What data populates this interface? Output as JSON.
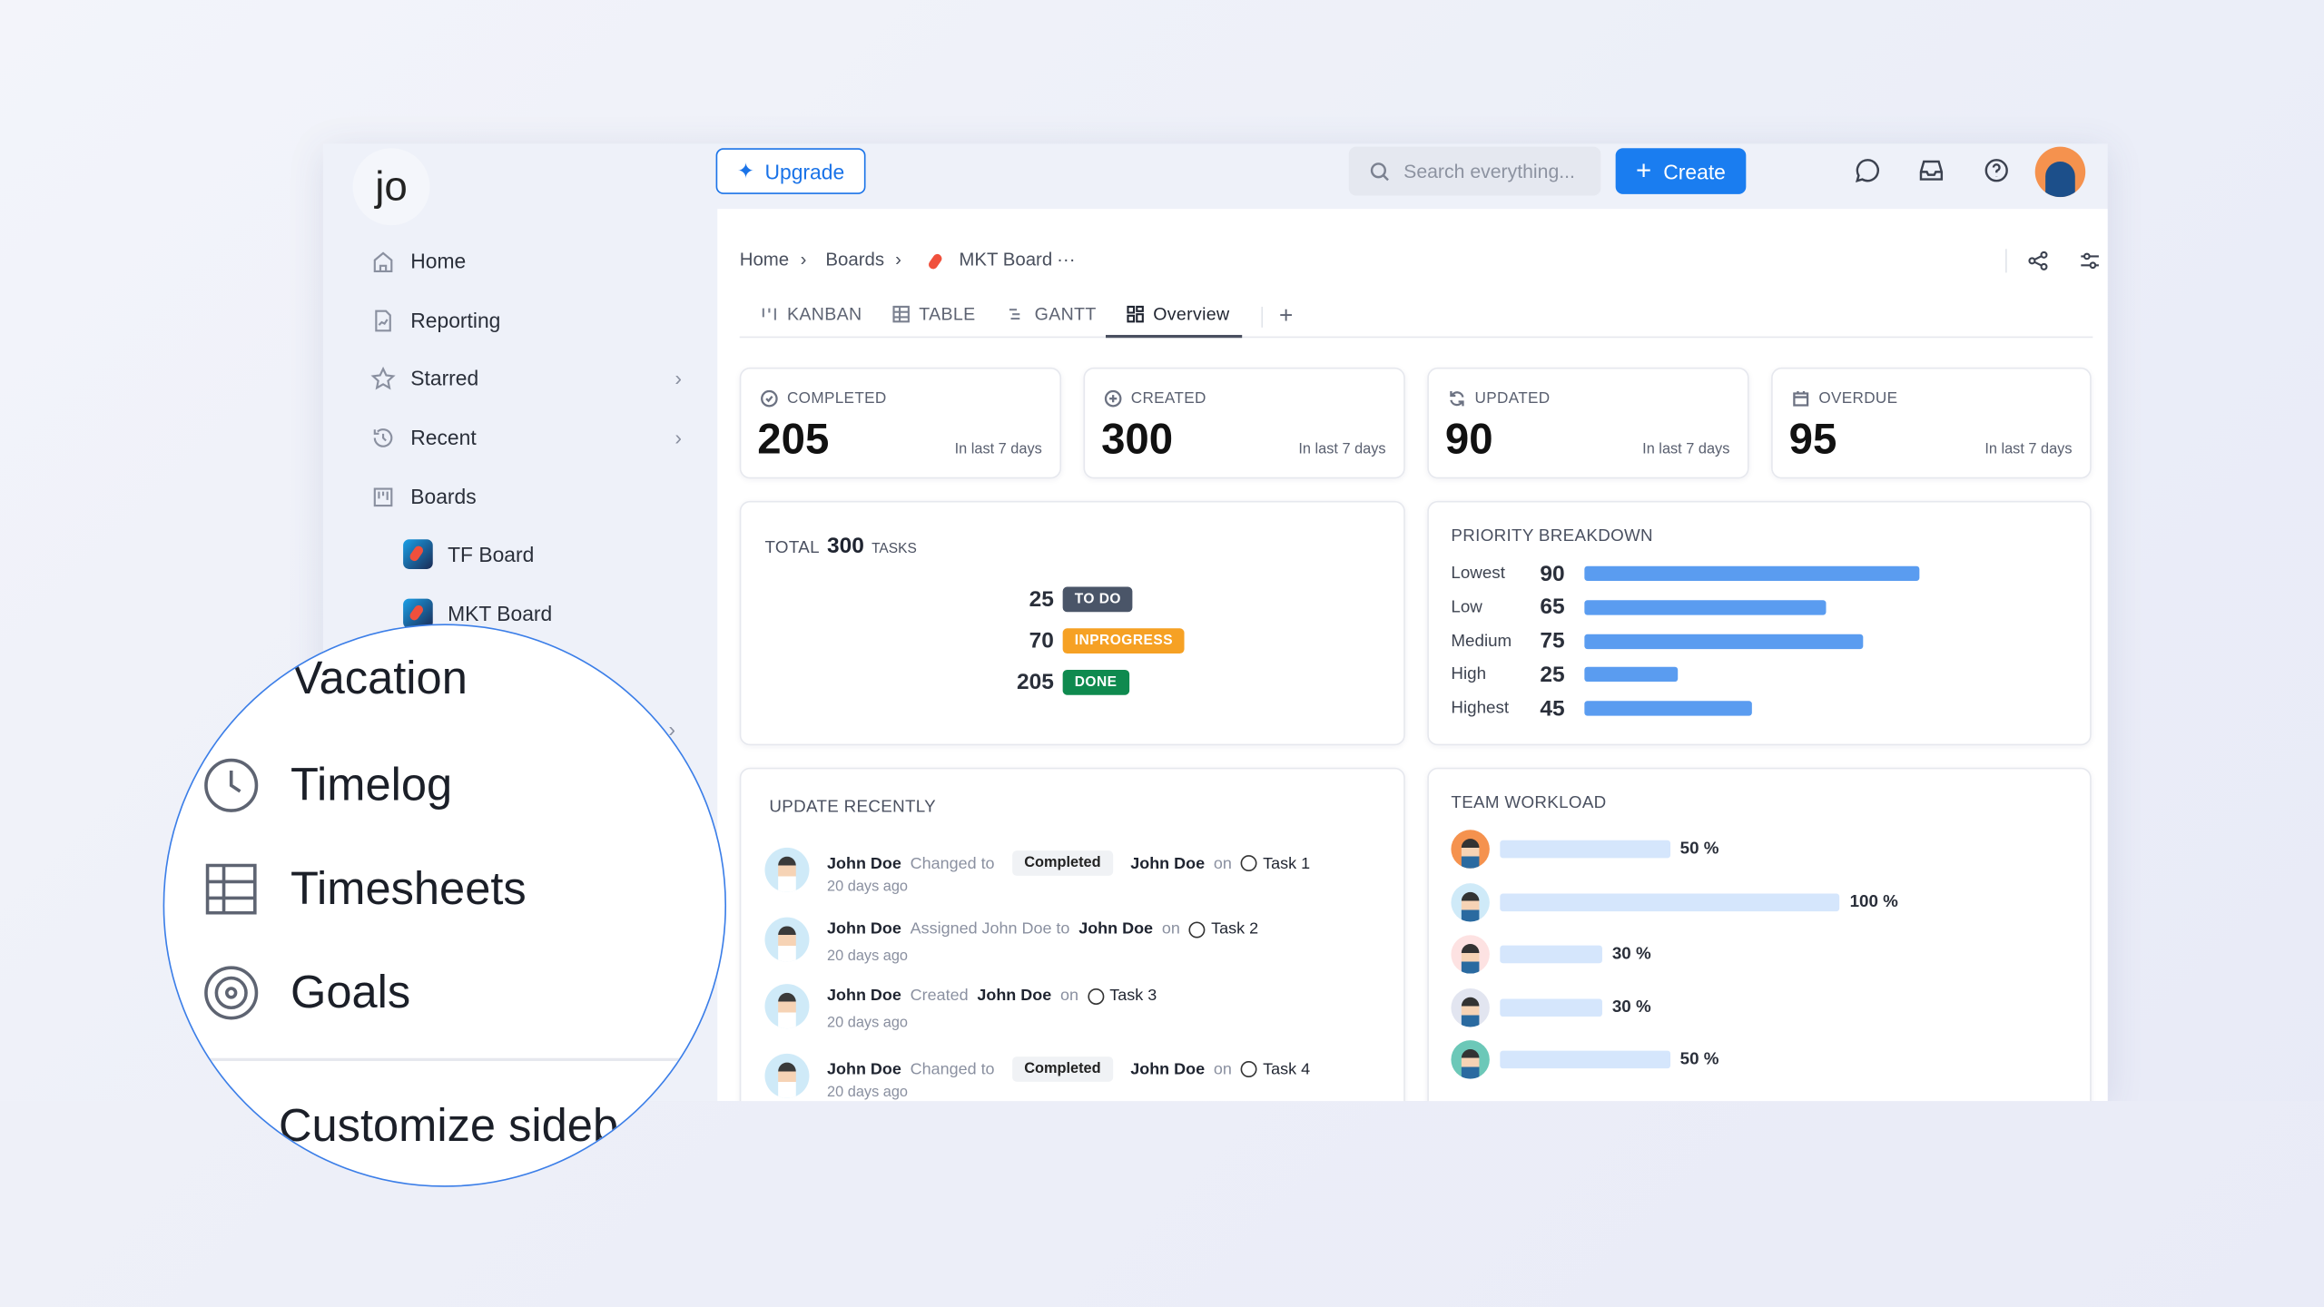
{
  "app": {
    "logo": "jo"
  },
  "sidebar": {
    "items": [
      {
        "label": "Home",
        "icon": "home-icon"
      },
      {
        "label": "Reporting",
        "icon": "report-icon"
      },
      {
        "label": "Starred",
        "icon": "star-icon"
      },
      {
        "label": "Recent",
        "icon": "history-icon"
      },
      {
        "label": "Boards",
        "icon": "board-icon"
      }
    ],
    "boards": [
      {
        "label": "TF Board"
      },
      {
        "label": "MKT Board"
      }
    ],
    "magnified": {
      "items": [
        {
          "label": "Vacation"
        },
        {
          "label": "Timelog",
          "icon": "clock-icon"
        },
        {
          "label": "Timesheets",
          "icon": "grid-icon"
        },
        {
          "label": "Goals",
          "icon": "target-icon"
        }
      ],
      "customize": "Customize sideb"
    }
  },
  "topbar": {
    "upgrade": "Upgrade",
    "search_placeholder": "Search everything...",
    "create": "Create"
  },
  "breadcrumb": [
    "Home",
    "Boards",
    "MKT Board"
  ],
  "tabs": [
    {
      "label": "KANBAN"
    },
    {
      "label": "TABLE"
    },
    {
      "label": "GANTT"
    },
    {
      "label": "Overview",
      "active": true
    }
  ],
  "stats": [
    {
      "label": "COMPLETED",
      "value": "205",
      "sub": "In last 7 days"
    },
    {
      "label": "CREATED",
      "value": "300",
      "sub": "In last 7 days"
    },
    {
      "label": "UPDATED",
      "value": "90",
      "sub": "In last 7 days"
    },
    {
      "label": "OVERDUE",
      "value": "95",
      "sub": "In last 7 days"
    }
  ],
  "total": {
    "prefix": "TOTAL",
    "value": "300",
    "suffix": "TASKS",
    "rows": [
      {
        "count": "25",
        "status": "TO DO",
        "color": "#4a5568"
      },
      {
        "count": "70",
        "status": "INPROGRESS",
        "color": "#f6a124"
      },
      {
        "count": "205",
        "status": "DONE",
        "color": "#0f8a4f"
      }
    ]
  },
  "priority": {
    "title": "PRIORITY BREAKDOWN",
    "rows": [
      {
        "label": "Lowest",
        "value": 90
      },
      {
        "label": "Low",
        "value": 65
      },
      {
        "label": "Medium",
        "value": 75
      },
      {
        "label": "High",
        "value": 25
      },
      {
        "label": "Highest",
        "value": 45
      }
    ],
    "bar_color": "#5a9cf0"
  },
  "updates": {
    "title": "UPDATE RECENTLY",
    "items": [
      {
        "user": "John Doe",
        "action": "Changed to",
        "chip": "Completed",
        "target": "John Doe",
        "on": "on",
        "task": "Task 1",
        "time": "20 days ago"
      },
      {
        "user": "John Doe",
        "action": "Assigned John Doe to",
        "chip": "",
        "target": "John Doe",
        "on": "on",
        "task": "Task 2",
        "time": "20 days ago"
      },
      {
        "user": "John Doe",
        "action": "Created",
        "chip": "",
        "target": "John Doe",
        "on": "on",
        "task": "Task 3",
        "time": "20 days ago"
      },
      {
        "user": "John Doe",
        "action": "Changed to",
        "chip": "Completed",
        "target": "John Doe",
        "on": "on",
        "task": "Task 4",
        "time": "20 days ago"
      }
    ]
  },
  "workload": {
    "title": "TEAM WORKLOAD",
    "rows": [
      {
        "percent": 50,
        "label": "50 %"
      },
      {
        "percent": 100,
        "label": "100 %"
      },
      {
        "percent": 30,
        "label": "30 %"
      },
      {
        "percent": 30,
        "label": "30 %"
      },
      {
        "percent": 50,
        "label": "50 %"
      }
    ],
    "bar_color": "#d5e6fc"
  }
}
